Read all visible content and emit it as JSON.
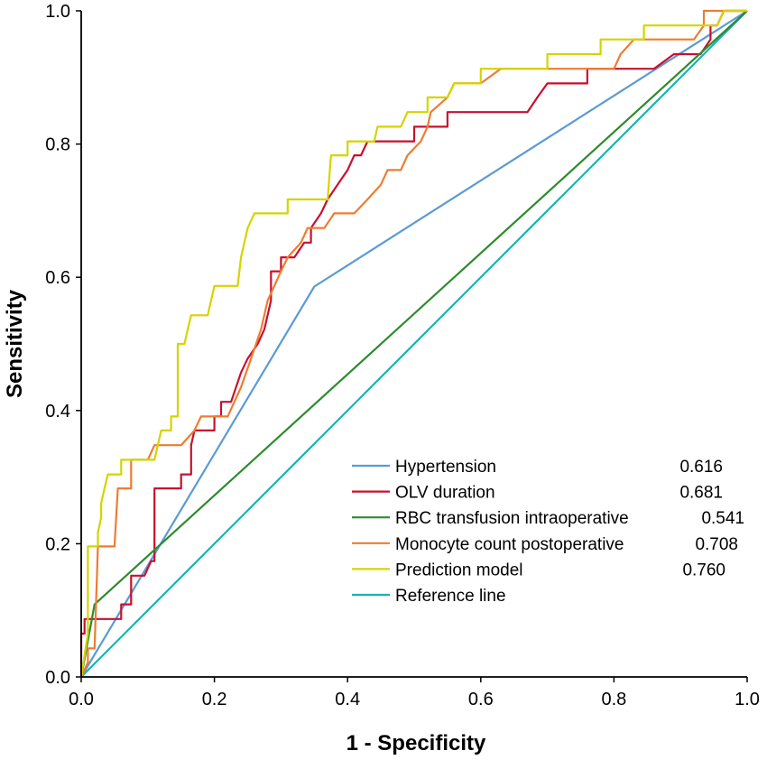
{
  "chart_data": {
    "type": "line",
    "title": "",
    "xlabel": "1 - Specificity",
    "ylabel": "Sensitivity",
    "xlim": [
      0,
      1
    ],
    "ylim": [
      0,
      1
    ],
    "x_ticks": [
      "0.0",
      "0.2",
      "0.4",
      "0.6",
      "0.8",
      "1.0"
    ],
    "y_ticks": [
      "0.0",
      "0.2",
      "0.4",
      "0.6",
      "0.8",
      "1.0"
    ],
    "x_tick_values": [
      0,
      0.2,
      0.4,
      0.6,
      0.8,
      1.0
    ],
    "y_tick_values": [
      0,
      0.2,
      0.4,
      0.6,
      0.8,
      1.0
    ],
    "grid": false,
    "legend_position": "bottom-right",
    "series": [
      {
        "name": "Hypertension",
        "auc": "0.616",
        "color": "#5b9bd5",
        "points": [
          [
            0,
            0
          ],
          [
            0.35,
            0.586
          ],
          [
            1,
            1
          ]
        ]
      },
      {
        "name": "OLV duration",
        "auc": "0.681",
        "color": "#c8102e",
        "points": [
          [
            0,
            0
          ],
          [
            0,
            0.065
          ],
          [
            0.005,
            0.065
          ],
          [
            0.005,
            0.087
          ],
          [
            0.06,
            0.087
          ],
          [
            0.06,
            0.109
          ],
          [
            0.075,
            0.109
          ],
          [
            0.075,
            0.152
          ],
          [
            0.095,
            0.152
          ],
          [
            0.105,
            0.174
          ],
          [
            0.11,
            0.174
          ],
          [
            0.11,
            0.283
          ],
          [
            0.15,
            0.283
          ],
          [
            0.15,
            0.304
          ],
          [
            0.165,
            0.304
          ],
          [
            0.165,
            0.348
          ],
          [
            0.17,
            0.37
          ],
          [
            0.2,
            0.37
          ],
          [
            0.2,
            0.391
          ],
          [
            0.21,
            0.391
          ],
          [
            0.21,
            0.413
          ],
          [
            0.225,
            0.413
          ],
          [
            0.24,
            0.457
          ],
          [
            0.25,
            0.478
          ],
          [
            0.265,
            0.5
          ],
          [
            0.275,
            0.522
          ],
          [
            0.285,
            0.565
          ],
          [
            0.285,
            0.609
          ],
          [
            0.3,
            0.609
          ],
          [
            0.3,
            0.63
          ],
          [
            0.32,
            0.63
          ],
          [
            0.335,
            0.652
          ],
          [
            0.345,
            0.652
          ],
          [
            0.345,
            0.674
          ],
          [
            0.36,
            0.696
          ],
          [
            0.37,
            0.717
          ],
          [
            0.385,
            0.739
          ],
          [
            0.4,
            0.761
          ],
          [
            0.41,
            0.783
          ],
          [
            0.42,
            0.783
          ],
          [
            0.43,
            0.804
          ],
          [
            0.5,
            0.804
          ],
          [
            0.5,
            0.826
          ],
          [
            0.55,
            0.826
          ],
          [
            0.55,
            0.848
          ],
          [
            0.67,
            0.848
          ],
          [
            0.685,
            0.87
          ],
          [
            0.7,
            0.891
          ],
          [
            0.76,
            0.891
          ],
          [
            0.76,
            0.913
          ],
          [
            0.86,
            0.913
          ],
          [
            0.89,
            0.935
          ],
          [
            0.93,
            0.935
          ],
          [
            0.945,
            0.957
          ],
          [
            0.945,
            0.978
          ],
          [
            0.955,
            0.978
          ],
          [
            0.965,
            1
          ],
          [
            1,
            1
          ]
        ]
      },
      {
        "name": "RBC transfusion intraoperative",
        "auc": "0.541",
        "color": "#2e8b2e",
        "points": [
          [
            0,
            0
          ],
          [
            0.02,
            0.109
          ],
          [
            1,
            1
          ]
        ]
      },
      {
        "name": "Monocyte count postoperative",
        "auc": "0.708",
        "color": "#ed7d31",
        "points": [
          [
            0,
            0
          ],
          [
            0.01,
            0.022
          ],
          [
            0.01,
            0.043
          ],
          [
            0.02,
            0.043
          ],
          [
            0.025,
            0.196
          ],
          [
            0.05,
            0.196
          ],
          [
            0.055,
            0.283
          ],
          [
            0.075,
            0.283
          ],
          [
            0.075,
            0.326
          ],
          [
            0.1,
            0.326
          ],
          [
            0.11,
            0.348
          ],
          [
            0.15,
            0.348
          ],
          [
            0.17,
            0.37
          ],
          [
            0.18,
            0.391
          ],
          [
            0.22,
            0.391
          ],
          [
            0.23,
            0.413
          ],
          [
            0.24,
            0.435
          ],
          [
            0.255,
            0.478
          ],
          [
            0.27,
            0.522
          ],
          [
            0.28,
            0.565
          ],
          [
            0.29,
            0.587
          ],
          [
            0.3,
            0.609
          ],
          [
            0.31,
            0.63
          ],
          [
            0.33,
            0.652
          ],
          [
            0.34,
            0.674
          ],
          [
            0.365,
            0.674
          ],
          [
            0.38,
            0.696
          ],
          [
            0.41,
            0.696
          ],
          [
            0.43,
            0.717
          ],
          [
            0.45,
            0.739
          ],
          [
            0.46,
            0.761
          ],
          [
            0.48,
            0.761
          ],
          [
            0.49,
            0.783
          ],
          [
            0.51,
            0.804
          ],
          [
            0.52,
            0.826
          ],
          [
            0.525,
            0.848
          ],
          [
            0.55,
            0.87
          ],
          [
            0.56,
            0.891
          ],
          [
            0.6,
            0.891
          ],
          [
            0.63,
            0.913
          ],
          [
            0.8,
            0.913
          ],
          [
            0.81,
            0.935
          ],
          [
            0.83,
            0.957
          ],
          [
            0.92,
            0.957
          ],
          [
            0.935,
            0.978
          ],
          [
            0.935,
            1
          ],
          [
            0.96,
            1
          ],
          [
            1,
            1
          ]
        ]
      },
      {
        "name": "Prediction model",
        "auc": "0.760",
        "color": "#d4d400",
        "points": [
          [
            0,
            0
          ],
          [
            0.01,
            0.065
          ],
          [
            0.01,
            0.196
          ],
          [
            0.025,
            0.196
          ],
          [
            0.025,
            0.217
          ],
          [
            0.03,
            0.239
          ],
          [
            0.03,
            0.261
          ],
          [
            0.035,
            0.283
          ],
          [
            0.04,
            0.304
          ],
          [
            0.06,
            0.304
          ],
          [
            0.06,
            0.326
          ],
          [
            0.11,
            0.326
          ],
          [
            0.115,
            0.348
          ],
          [
            0.12,
            0.37
          ],
          [
            0.135,
            0.37
          ],
          [
            0.135,
            0.391
          ],
          [
            0.145,
            0.391
          ],
          [
            0.145,
            0.5
          ],
          [
            0.155,
            0.5
          ],
          [
            0.16,
            0.522
          ],
          [
            0.165,
            0.543
          ],
          [
            0.19,
            0.543
          ],
          [
            0.195,
            0.565
          ],
          [
            0.2,
            0.587
          ],
          [
            0.235,
            0.587
          ],
          [
            0.24,
            0.63
          ],
          [
            0.25,
            0.674
          ],
          [
            0.26,
            0.696
          ],
          [
            0.31,
            0.696
          ],
          [
            0.31,
            0.717
          ],
          [
            0.37,
            0.717
          ],
          [
            0.375,
            0.783
          ],
          [
            0.4,
            0.783
          ],
          [
            0.4,
            0.804
          ],
          [
            0.44,
            0.804
          ],
          [
            0.445,
            0.826
          ],
          [
            0.48,
            0.826
          ],
          [
            0.49,
            0.848
          ],
          [
            0.52,
            0.848
          ],
          [
            0.52,
            0.87
          ],
          [
            0.55,
            0.87
          ],
          [
            0.56,
            0.891
          ],
          [
            0.6,
            0.891
          ],
          [
            0.6,
            0.913
          ],
          [
            0.7,
            0.913
          ],
          [
            0.7,
            0.935
          ],
          [
            0.78,
            0.935
          ],
          [
            0.78,
            0.957
          ],
          [
            0.845,
            0.957
          ],
          [
            0.845,
            0.978
          ],
          [
            0.955,
            0.978
          ],
          [
            0.965,
            1
          ],
          [
            1,
            1
          ]
        ]
      },
      {
        "name": "Reference line",
        "auc": "",
        "color": "#17b3b3",
        "points": [
          [
            0,
            0
          ],
          [
            1,
            1
          ]
        ]
      }
    ]
  }
}
